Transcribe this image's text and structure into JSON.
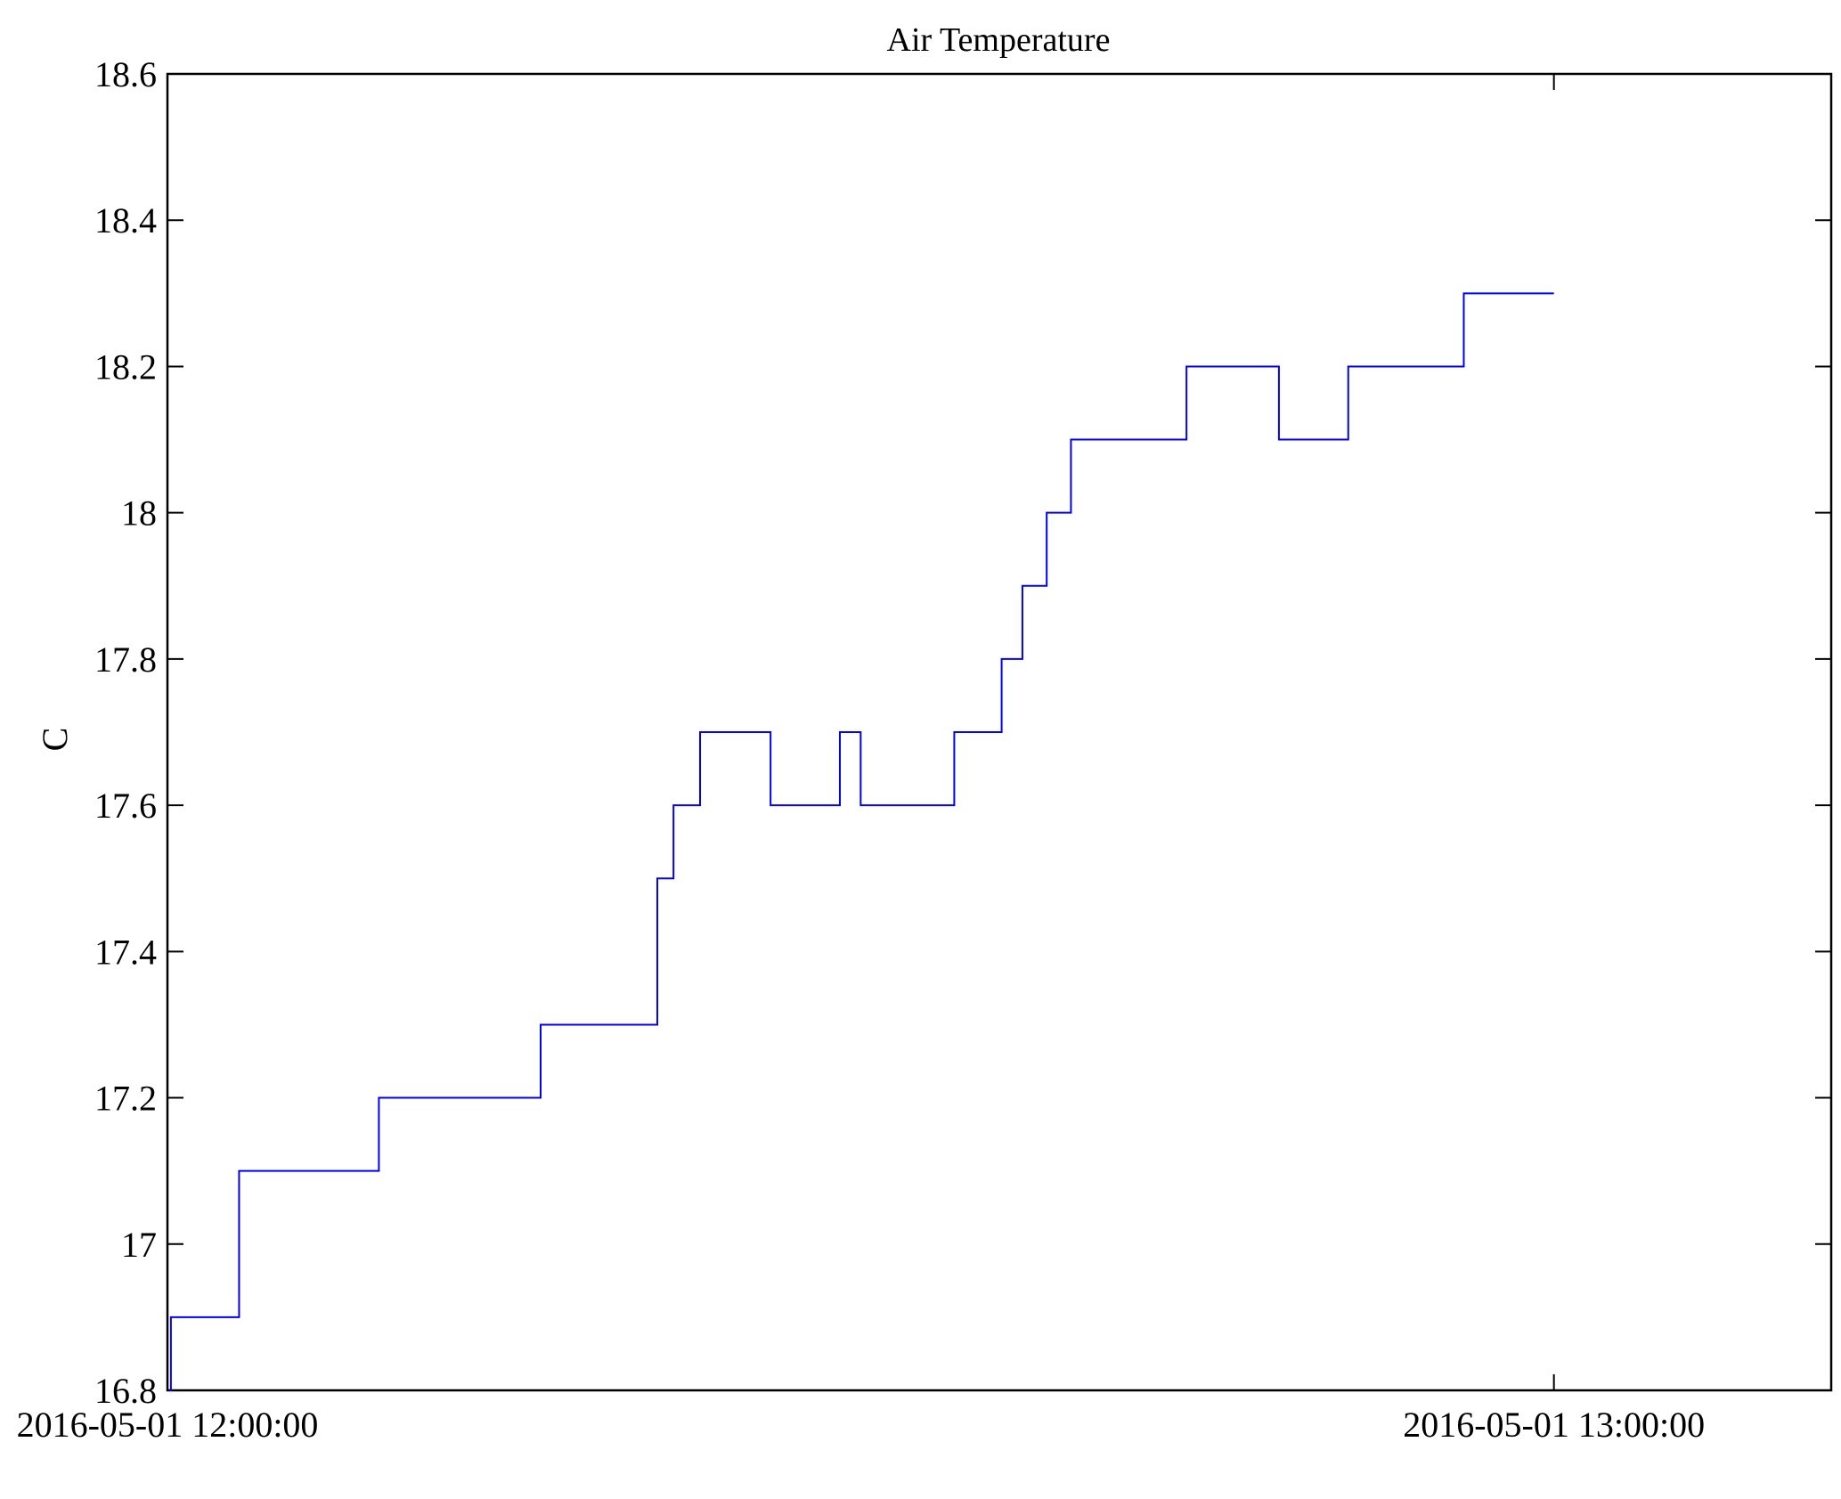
{
  "chart_data": {
    "type": "line",
    "title": "Air Temperature",
    "xlabel": "",
    "ylabel": "C",
    "x_units": "minutes after 2016-05-01 12:00:00",
    "xlim": [
      0,
      72
    ],
    "ylim": [
      16.8,
      18.6
    ],
    "grid": false,
    "legend": "none",
    "line_color": "#0000ff",
    "step": "post",
    "xticks": [
      {
        "value": 0,
        "label": "2016-05-01 12:00:00"
      },
      {
        "value": 60,
        "label": "2016-05-01 13:00:00"
      }
    ],
    "yticks": [
      {
        "value": 16.8,
        "label": "16.8"
      },
      {
        "value": 17.0,
        "label": "17"
      },
      {
        "value": 17.2,
        "label": "17.2"
      },
      {
        "value": 17.4,
        "label": "17.4"
      },
      {
        "value": 17.6,
        "label": "17.6"
      },
      {
        "value": 17.8,
        "label": "17.8"
      },
      {
        "value": 18.0,
        "label": "18"
      },
      {
        "value": 18.2,
        "label": "18.2"
      },
      {
        "value": 18.4,
        "label": "18.4"
      },
      {
        "value": 18.6,
        "label": "18.6"
      }
    ],
    "series": [
      {
        "name": "Air Temperature",
        "x": [
          0.1,
          0.15,
          3.1,
          9.15,
          16.15,
          21.2,
          21.9,
          23.05,
          26.1,
          29.1,
          30.0,
          34.05,
          36.1,
          37.0,
          38.05,
          39.1,
          44.1,
          48.1,
          51.1,
          56.1,
          60.0
        ],
        "y": [
          16.8,
          16.9,
          17.1,
          17.2,
          17.3,
          17.5,
          17.6,
          17.7,
          17.6,
          17.7,
          17.6,
          17.7,
          17.8,
          17.9,
          18.0,
          18.1,
          18.2,
          18.1,
          18.2,
          18.3,
          18.3
        ]
      }
    ]
  }
}
